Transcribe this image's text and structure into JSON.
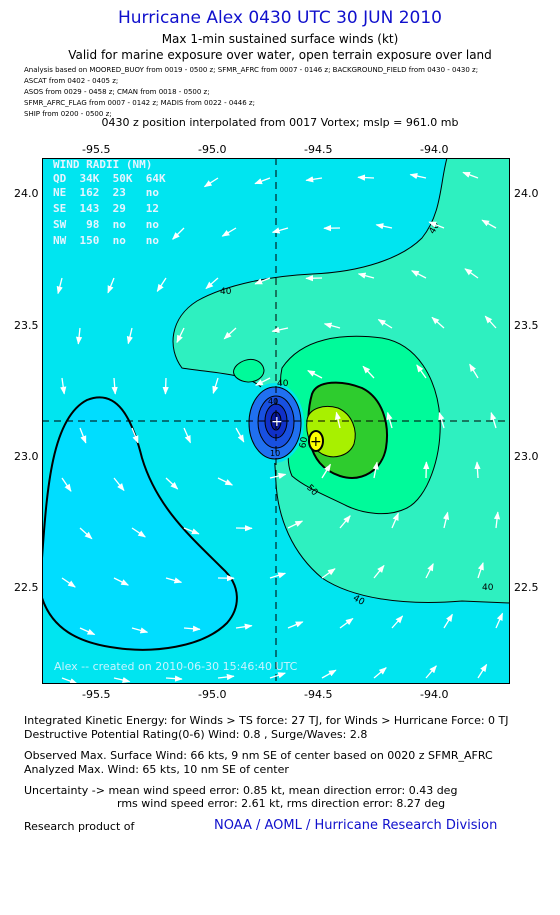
{
  "header": {
    "title": "Hurricane Alex 0430 UTC 30 JUN 2010",
    "subtitle1": "Max 1-min sustained surface winds (kt)",
    "subtitle2": "Valid for marine exposure over water, open terrain exposure over land"
  },
  "sources": [
    "Analysis based on  MOORED_BUOY from 0019 - 0500 z;  SFMR_AFRC from 0007 - 0146 z;  BACKGROUND_FIELD from 0430 - 0430 z;",
    "ASCAT from 0402 - 0405 z;",
    "ASOS from 0029 - 0458 z;  CMAN from 0018 - 0500 z;",
    "SFMR_AFRC_FLAG from 0007 - 0142 z;  MADIS from 0022 - 0446 z;",
    "SHIP from 0200 - 0500 z;"
  ],
  "interp_line": "0430 z position interpolated from 0017 Vortex; mslp = 961.0 mb",
  "axes": {
    "x_ticks": [
      "-95.5",
      "-95.0",
      "-94.5",
      "-94.0"
    ],
    "y_ticks": [
      "24.0",
      "23.5",
      "23.0",
      "22.5"
    ]
  },
  "wind_radii": {
    "header": "WIND RADII (NM)",
    "columns": "QD  34K  50K  64K",
    "rows": [
      "NE  162  23   no",
      "SE  143  29   12",
      "SW   98  no   no",
      "NW  150  no   no"
    ]
  },
  "contour_labels": [
    "40",
    "40",
    "40",
    "40",
    "40",
    "50",
    "60",
    "40",
    "10"
  ],
  "credit": "Alex -- created on 2010-06-30 15:46:40 UTC",
  "colors": {
    "title": "#1010cc",
    "field_low": "#00e5f0",
    "field_34kt": "#2ef0c0",
    "field_40kt": "#00fa9a",
    "field_50kt": "#2ecc2e",
    "field_60kt": "#a8f000",
    "field_64kt": "#ffff00",
    "calm_core": "#1030e0"
  },
  "info": {
    "ike": "Integrated Kinetic Energy:  for Winds > TS force: 27 TJ,  for Winds > Hurricane Force: 0 TJ",
    "dpr": "Destructive Potential Rating(0-6)   Wind: 0.8 , Surge/Waves: 2.8",
    "obs": "Observed Max. Surface Wind: 66 kts, 9 nm SE of center based on 0020 z SFMR_AFRC",
    "ana": "Analyzed Max. Wind: 65 kts, 10 nm SE of center",
    "unc1": "Uncertainty -> mean wind speed error: 0.85 kt,   mean direction error: 0.43 deg",
    "unc2": "rms wind speed error: 2.61 kt,   rms direction error: 8.27 deg",
    "research": "Research product of",
    "org": "NOAA / AOML / Hurricane Research Division"
  }
}
